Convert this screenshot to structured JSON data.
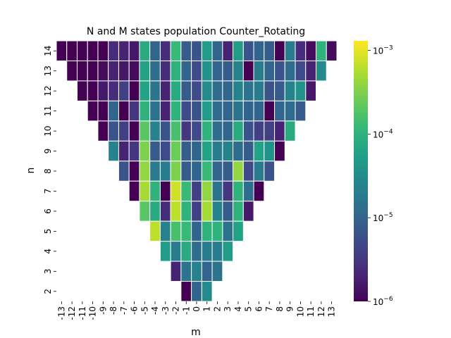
{
  "chart_data": {
    "type": "heatmap",
    "title": "N and M states population Counter_Rotating",
    "xlabel": "m",
    "ylabel": "n",
    "x_categories": [
      "-13",
      "-12",
      "-11",
      "-10",
      "-9",
      "-8",
      "-7",
      "-6",
      "-5",
      "-4",
      "-3",
      "-2",
      "-1",
      "0",
      "1",
      "2",
      "3",
      "4",
      "5",
      "6",
      "7",
      "8",
      "9",
      "10",
      "11",
      "12",
      "13"
    ],
    "y_categories": [
      "14",
      "13",
      "12",
      "11",
      "10",
      "9",
      "8",
      "7",
      "6",
      "5",
      "4",
      "3",
      "2"
    ],
    "color_scale": "log",
    "colormap": "viridis",
    "vmin": 1e-06,
    "vmax": 0.0013,
    "colorbar_ticks": [
      {
        "value": 1e-06,
        "mantissa": "10",
        "exponent": "−6"
      },
      {
        "value": 1e-05,
        "mantissa": "10",
        "exponent": "−5"
      },
      {
        "value": 0.0001,
        "mantissa": "10",
        "exponent": "−4"
      },
      {
        "value": 0.001,
        "mantissa": "10",
        "exponent": "−3"
      }
    ],
    "cell_border_color": "#ffffff",
    "log10_values": [
      [
        -6.0,
        -6.0,
        -6.0,
        -6.0,
        -6.0,
        -5.6,
        -5.7,
        -5.8,
        -4.1,
        -5.0,
        -5.6,
        -3.9,
        -5.1,
        -5.2,
        -4.3,
        -5.0,
        -5.7,
        -4.3,
        -5.2,
        -5.0,
        -5.1,
        -6.0,
        -4.7,
        -5.6,
        -5.9,
        -4.0,
        -5.9
      ],
      [
        null,
        -6.0,
        -6.0,
        -6.0,
        -5.9,
        -5.7,
        -5.8,
        -5.9,
        -4.2,
        -4.9,
        -5.6,
        -4.0,
        -5.0,
        -5.3,
        -4.4,
        -5.0,
        -5.1,
        -4.6,
        -6.0,
        -4.7,
        -5.0,
        -5.2,
        -4.9,
        -5.3,
        -5.7,
        -4.5,
        null
      ],
      [
        null,
        null,
        -6.0,
        -6.0,
        -5.8,
        -5.6,
        -5.4,
        -6.0,
        -4.2,
        -4.8,
        -5.7,
        -4.1,
        -5.1,
        -5.3,
        -4.5,
        -4.9,
        -5.0,
        -4.6,
        -4.8,
        -4.7,
        -5.2,
        -5.1,
        -4.6,
        -4.4,
        -5.8,
        null,
        null
      ],
      [
        null,
        null,
        null,
        -6.0,
        -6.0,
        -5.0,
        -6.0,
        -5.5,
        -4.0,
        -4.8,
        -5.7,
        -4.0,
        -5.3,
        -5.2,
        -4.3,
        -4.9,
        -5.0,
        -4.8,
        -5.0,
        -5.0,
        -6.0,
        -5.0,
        -4.9,
        -5.1,
        null,
        null,
        null
      ],
      [
        null,
        null,
        null,
        null,
        -6.0,
        -5.2,
        -5.4,
        -6.0,
        -3.7,
        -4.6,
        -5.2,
        -3.8,
        -5.5,
        -5.3,
        -4.0,
        -4.9,
        -5.0,
        -4.1,
        -5.2,
        -5.4,
        -5.4,
        -5.7,
        -4.1,
        null,
        null,
        null,
        null
      ],
      [
        null,
        null,
        null,
        null,
        null,
        -4.6,
        -5.7,
        -5.5,
        -3.5,
        -5.1,
        -5.3,
        -3.6,
        -5.1,
        -5.0,
        -4.2,
        -4.7,
        -4.6,
        -4.9,
        -5.1,
        -4.2,
        -4.4,
        -6.0,
        null,
        null,
        null,
        null,
        null
      ],
      [
        null,
        null,
        null,
        null,
        null,
        null,
        -5.2,
        -6.0,
        -3.4,
        -4.7,
        -4.7,
        -3.5,
        -5.1,
        -5.0,
        -3.9,
        -5.0,
        -5.1,
        -3.4,
        -5.3,
        -4.7,
        -5.2,
        null,
        null,
        null,
        null,
        null,
        null
      ],
      [
        null,
        null,
        null,
        null,
        null,
        null,
        null,
        -6.0,
        -3.3,
        -4.0,
        -6.0,
        -3.1,
        -3.9,
        -5.4,
        -3.4,
        -4.8,
        -5.5,
        -4.0,
        -4.9,
        -6.0,
        null,
        null,
        null,
        null,
        null,
        null,
        null
      ],
      [
        null,
        null,
        null,
        null,
        null,
        null,
        null,
        null,
        -3.7,
        -4.1,
        -5.6,
        -3.2,
        -4.0,
        -5.4,
        -3.3,
        -4.6,
        -5.1,
        -4.0,
        -5.8,
        null,
        null,
        null,
        null,
        null,
        null,
        null,
        null
      ],
      [
        null,
        null,
        null,
        null,
        null,
        null,
        null,
        null,
        null,
        -3.2,
        -4.6,
        -3.8,
        -3.9,
        -5.0,
        -4.0,
        -4.0,
        -4.8,
        -4.2,
        null,
        null,
        null,
        null,
        null,
        null,
        null,
        null,
        null
      ],
      [
        null,
        null,
        null,
        null,
        null,
        null,
        null,
        null,
        null,
        null,
        -4.3,
        -4.7,
        -4.1,
        -4.9,
        -4.7,
        -4.7,
        -4.3,
        null,
        null,
        null,
        null,
        null,
        null,
        null,
        null,
        null,
        null
      ],
      [
        null,
        null,
        null,
        null,
        null,
        null,
        null,
        null,
        null,
        null,
        null,
        -5.7,
        -4.8,
        -4.6,
        -5.0,
        -4.8,
        null,
        null,
        null,
        null,
        null,
        null,
        null,
        null,
        null,
        null,
        null
      ],
      [
        null,
        null,
        null,
        null,
        null,
        null,
        null,
        null,
        null,
        null,
        null,
        null,
        -6.0,
        -5.0,
        -4.5,
        null,
        null,
        null,
        null,
        null,
        null,
        null,
        null,
        null,
        null,
        null,
        null
      ]
    ]
  }
}
